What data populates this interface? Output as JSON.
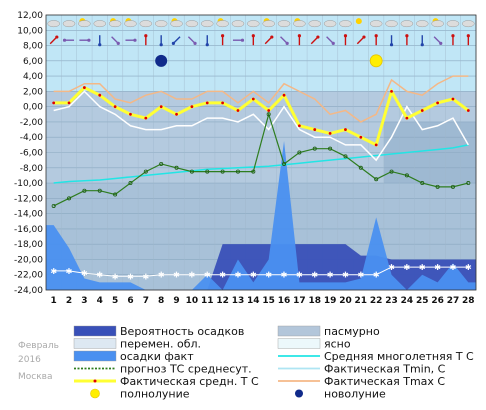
{
  "chart_data": {
    "type": "line",
    "month_label": "Февраль",
    "year_label": "2016",
    "city_label": "Москва",
    "ylim": [
      -24,
      12
    ],
    "y_ticks": [
      "12,00",
      "10,00",
      "8,00",
      "6,00",
      "4,00",
      "2,00",
      "0,00",
      "-2,00",
      "-4,00",
      "-6,00",
      "-8,00",
      "-10,00",
      "-12,00",
      "-14,00",
      "-16,00",
      "-18,00",
      "-20,00",
      "-22,00",
      "-24,00"
    ],
    "y_tick_values": [
      12,
      10,
      8,
      6,
      4,
      2,
      0,
      -2,
      -4,
      -6,
      -8,
      -10,
      -12,
      -14,
      -16,
      -18,
      -20,
      -22,
      -24
    ],
    "x_ticks": [
      "1",
      "2",
      "3",
      "4",
      "5",
      "6",
      "7",
      "8",
      "9",
      "10",
      "11",
      "12",
      "13",
      "14",
      "15",
      "16",
      "17",
      "18",
      "19",
      "20",
      "21",
      "22",
      "23",
      "24",
      "25",
      "26",
      "27",
      "28"
    ],
    "x": [
      1,
      2,
      3,
      4,
      5,
      6,
      7,
      8,
      9,
      10,
      11,
      12,
      13,
      14,
      15,
      16,
      17,
      18,
      19,
      20,
      21,
      22,
      23,
      24,
      25,
      26,
      27,
      28
    ],
    "series": [
      {
        "name": "Фактическая Tmax С",
        "color": "#f4b887",
        "values": [
          2,
          2,
          3,
          3,
          1,
          0.5,
          1.5,
          2,
          1,
          1,
          2,
          2,
          0.5,
          2,
          0.5,
          3,
          2,
          1,
          -1,
          -0.5,
          -2,
          -1,
          3.5,
          2,
          1.5,
          3,
          4,
          4
        ]
      },
      {
        "name": "Фактическая Tmin, С",
        "color": "#ffffff",
        "values": [
          -0.5,
          0,
          2,
          0,
          -1,
          -2.5,
          -3,
          -3,
          -2.5,
          -2.5,
          -1.5,
          -1.5,
          -2,
          -1,
          -3,
          0,
          -3,
          -4,
          -4,
          -5,
          -5,
          -7,
          -4,
          0,
          -3,
          -2.5,
          -1.5,
          -5
        ]
      },
      {
        "name": "Фактическая средн. Т С",
        "color": "#ffff33",
        "values": [
          0.5,
          0.5,
          2.5,
          1.5,
          0,
          -1,
          -1.5,
          0,
          -1,
          0,
          0.5,
          0.5,
          -0.5,
          1,
          -0.5,
          1.5,
          -2.5,
          -3,
          -3.5,
          -3,
          -4,
          -5,
          2,
          -1.5,
          -0.5,
          0.5,
          1,
          -0.5
        ]
      },
      {
        "name": "прогноз ТС среднесут.",
        "color": "#2e7d1f",
        "values": [
          -13,
          -12,
          -11,
          -11,
          -11.5,
          -10,
          -8.5,
          -7.5,
          -8,
          -8.5,
          -8.5,
          -8.5,
          -8.5,
          -8.5,
          -1,
          -7.5,
          -6,
          -5.5,
          -5.5,
          -6.5,
          -8,
          -9.5,
          -8.5,
          -9,
          -10,
          -10.5,
          -10.5,
          -10
        ]
      },
      {
        "name": "Средняя многолетняя Т С",
        "color": "#22e5e5",
        "values": [
          -10,
          -9.8,
          -9.7,
          -9.6,
          -9.4,
          -9.2,
          -9,
          -8.8,
          -8.6,
          -8.4,
          -8.2,
          -8.1,
          -8,
          -7.9,
          -7.8,
          -7.6,
          -7.4,
          -7.2,
          -7,
          -6.8,
          -6.6,
          -6.4,
          -6.2,
          -6,
          -5.8,
          -5.6,
          -5.4,
          -5
        ]
      },
      {
        "name": "Вероятность осадков",
        "color": "#3950b8",
        "values": [
          -24,
          -24,
          -24,
          -24,
          -24,
          -24,
          -24,
          -24,
          -24,
          -24,
          -24,
          -18,
          -18,
          -18,
          -18,
          -18,
          -18,
          -18,
          -18,
          -18,
          -19.5,
          -19.5,
          -20,
          -20,
          -20,
          -20,
          -20,
          -20
        ]
      },
      {
        "name": "осадки факт",
        "color": "#4a90f0",
        "values": [
          -15.5,
          -18.5,
          -22.5,
          -23,
          -23,
          -23,
          -24,
          -24,
          -24,
          -24,
          -22,
          -24,
          -20,
          -23,
          -20,
          -4.5,
          -23,
          -23,
          -23,
          -23,
          -22.5,
          -14.5,
          -22,
          -24,
          -22,
          -23,
          -20.5,
          -23
        ]
      },
      {
        "name": "снег",
        "color": "#ffffff",
        "values": [
          -21.5,
          -21.5,
          -21.8,
          -22,
          -22.2,
          -22.2,
          -22.2,
          -22,
          -22,
          -22,
          -22,
          -22,
          -22,
          -22,
          -22,
          -22,
          -22,
          -22,
          -22,
          -22,
          -22,
          -22,
          -21,
          -21,
          -21,
          -21,
          -21,
          -21
        ]
      }
    ],
    "full_moon_day": 22,
    "new_moon_day": 8,
    "icon_rows": {
      "sky": [
        "cloud",
        "cloud",
        "sun-cloud",
        "cloud",
        "sun-cloud",
        "sun-cloud",
        "cloud",
        "cloud",
        "sun-cloud",
        "cloud",
        "cloud",
        "sun-cloud",
        "cloud",
        "cloud",
        "sun-cloud",
        "cloud",
        "sun-cloud",
        "cloud",
        "cloud",
        "cloud",
        "sun",
        "cloud",
        "cloud",
        "cloud",
        "cloud",
        "sun-cloud",
        "cloud",
        "cloud"
      ],
      "wind": [
        "upright",
        "left",
        "right",
        "down",
        "downright",
        "right",
        "up",
        "down",
        "downleft",
        "downright",
        "down",
        "up",
        "right",
        "up",
        "upright",
        "downright",
        "up",
        "upright",
        "downright",
        "up",
        "upright",
        "up",
        "down",
        "up",
        "down",
        "downright",
        "up",
        "up"
      ]
    },
    "legend": [
      {
        "label": "Вероятность осадков",
        "kind": "box",
        "color": "#3950b8"
      },
      {
        "label": "перемен. обл.",
        "kind": "box",
        "color": "#dde8f2"
      },
      {
        "label": "осадки факт",
        "kind": "box",
        "color": "#4a90f0"
      },
      {
        "label": "прогноз ТС среднесут.",
        "kind": "dotline",
        "color": "#2e7d1f"
      },
      {
        "label": "Фактическая средн. Т С",
        "kind": "yline",
        "color": "#ffff33"
      },
      {
        "label": "полнолуние",
        "kind": "sun",
        "color": "#ffee00"
      },
      {
        "label": "пасмурно",
        "kind": "box",
        "color": "#b3c6da"
      },
      {
        "label": "ясно",
        "kind": "box",
        "color": "#ecf8fb"
      },
      {
        "label": "Средняя многолетняя Т С",
        "kind": "line",
        "color": "#22e5e5"
      },
      {
        "label": "Фактическая Tmin, С",
        "kind": "line",
        "color": "#aee5f3"
      },
      {
        "label": "Фактическая Tmax С",
        "kind": "line",
        "color": "#f4b887"
      },
      {
        "label": "новолуние",
        "kind": "dot",
        "color": "#102a8a"
      }
    ]
  }
}
